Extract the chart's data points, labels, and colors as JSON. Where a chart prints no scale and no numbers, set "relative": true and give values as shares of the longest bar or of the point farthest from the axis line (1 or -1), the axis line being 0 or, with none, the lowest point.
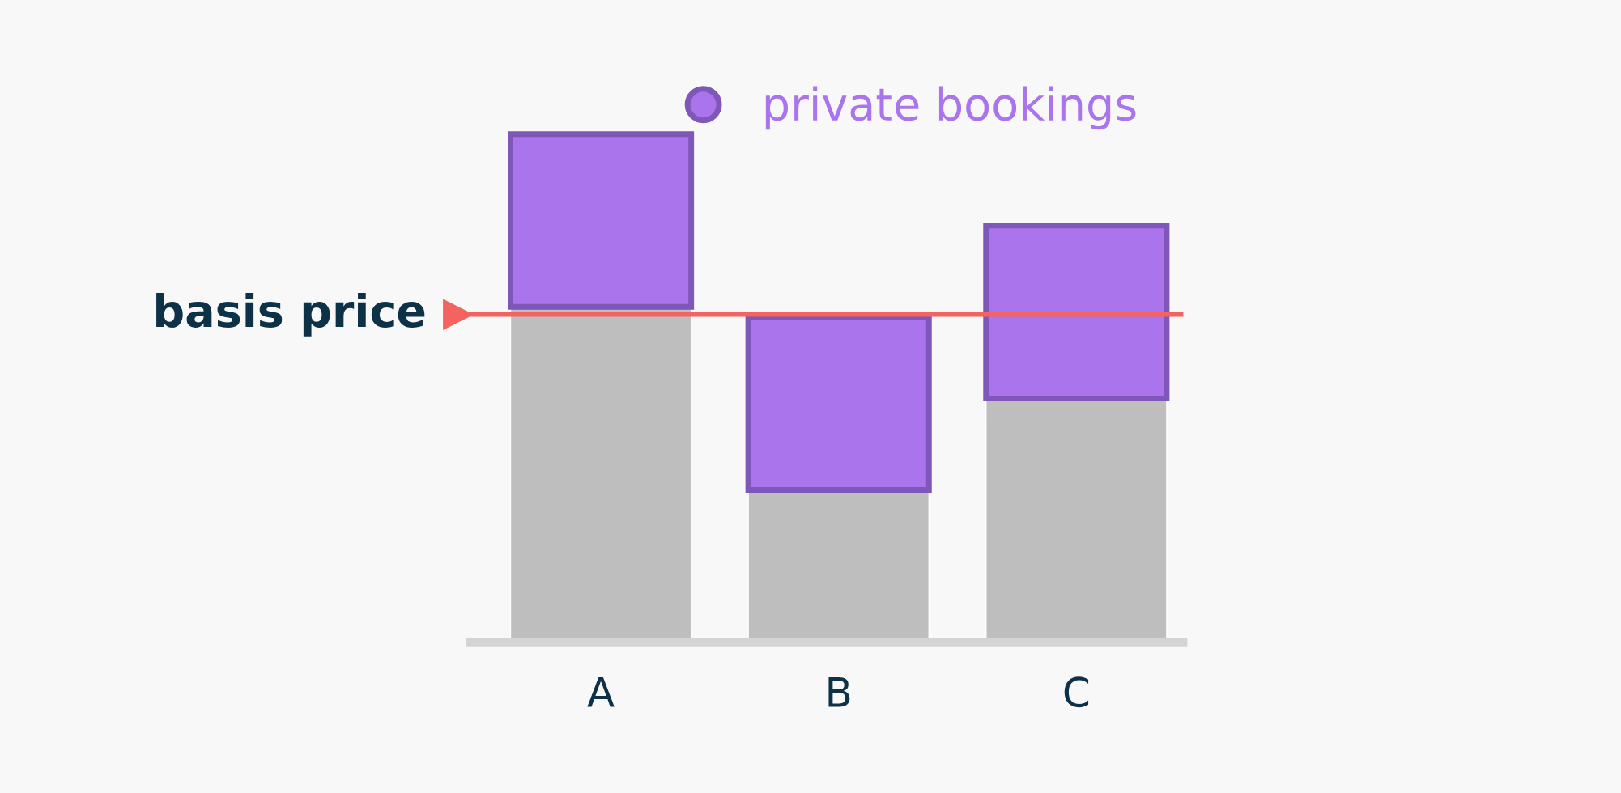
{
  "chart_data": {
    "type": "bar",
    "stacked": true,
    "relative": true,
    "categories": [
      "A",
      "B",
      "C"
    ],
    "series": [
      {
        "color": "#bebebe",
        "values": [
          0.66,
          0.3,
          0.48
        ]
      },
      {
        "name": "private bookings",
        "color": "#a974ec",
        "values": [
          0.34,
          0.34,
          0.34
        ]
      }
    ],
    "ref_lines": [
      {
        "axis": "y",
        "value": 0.645,
        "label": "basis price",
        "color": "#f4635f"
      }
    ],
    "legend": "top",
    "grid": false
  }
}
